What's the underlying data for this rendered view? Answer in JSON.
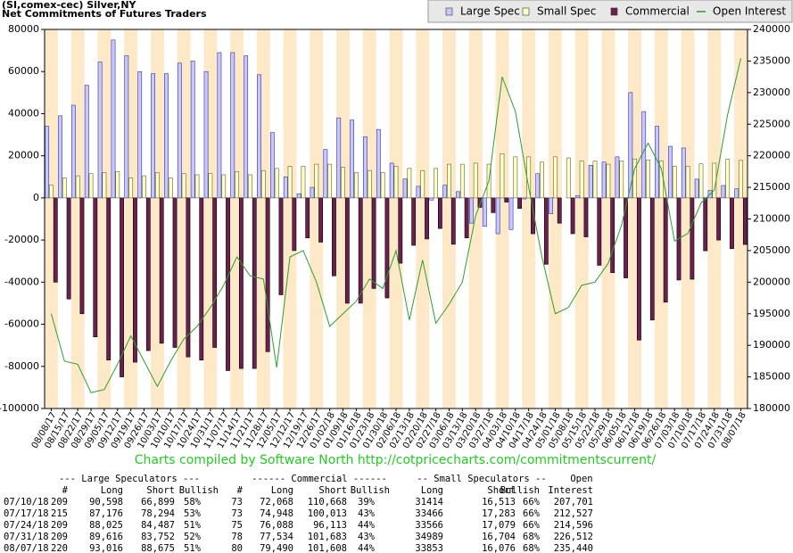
{
  "chart_data": {
    "type": "bar",
    "title": "(SI,comex-cec) Silver,NY",
    "subtitle": "Net Commitments of Futures Traders",
    "footer": "Charts compiled by Software North  http://cotpricecharts.com/commitmentscurrent/",
    "categories": [
      "08/08/17",
      "08/15/17",
      "08/22/17",
      "08/29/17",
      "09/05/17",
      "09/12/17",
      "09/19/17",
      "09/26/17",
      "10/03/17",
      "10/10/17",
      "10/17/17",
      "10/24/17",
      "10/31/17",
      "11/07/17",
      "11/14/17",
      "11/21/17",
      "11/28/17",
      "12/05/17",
      "12/12/17",
      "12/19/17",
      "12/26/17",
      "01/02/18",
      "01/09/18",
      "01/16/18",
      "01/23/18",
      "01/30/18",
      "02/06/18",
      "02/13/18",
      "02/20/18",
      "02/27/18",
      "03/06/18",
      "03/13/18",
      "03/20/18",
      "03/27/18",
      "04/03/18",
      "04/10/18",
      "04/17/18",
      "04/24/18",
      "05/01/18",
      "05/08/18",
      "05/15/18",
      "05/22/18",
      "05/29/18",
      "06/05/18",
      "06/12/18",
      "06/19/18",
      "06/26/18",
      "07/03/18",
      "07/10/18",
      "07/17/18",
      "07/24/18",
      "07/31/18",
      "08/07/18"
    ],
    "series": [
      {
        "name": "Large Spec",
        "type": "bar",
        "color": "#c8c8ff",
        "values": [
          34000,
          39000,
          44000,
          53500,
          64500,
          75000,
          67500,
          60000,
          59000,
          59000,
          64000,
          65000,
          60000,
          69000,
          69000,
          67500,
          58500,
          31000,
          10000,
          2000,
          5000,
          23000,
          38000,
          37000,
          29000,
          32500,
          16500,
          9000,
          5500,
          -1000,
          6000,
          3000,
          -12000,
          -13500,
          -17000,
          -15000,
          -500,
          11500,
          -7500,
          0,
          1000,
          15500,
          17000,
          19500,
          50000,
          41000,
          34000,
          24500,
          23700,
          8900,
          3500,
          5900,
          4300
        ]
      },
      {
        "name": "Small Spec",
        "type": "bar",
        "color": "#ffffc8",
        "values": [
          6000,
          9500,
          10500,
          11500,
          12000,
          12500,
          9500,
          10500,
          12000,
          9500,
          11500,
          11000,
          11500,
          11000,
          12500,
          11000,
          13000,
          14000,
          15000,
          15000,
          16000,
          16000,
          14500,
          12000,
          13000,
          12000,
          15000,
          14000,
          13000,
          14000,
          16000,
          16000,
          16500,
          16000,
          21000,
          19500,
          19500,
          17000,
          19500,
          19000,
          17500,
          17500,
          16000,
          17500,
          18500,
          18000,
          17500,
          15000,
          14900,
          16200,
          16500,
          18300,
          17800
        ]
      },
      {
        "name": "Commercial",
        "type": "bar",
        "color": "#6b2050",
        "values": [
          -40000,
          -48000,
          -55000,
          -66000,
          -77000,
          -85000,
          -78000,
          -72500,
          -69000,
          -71000,
          -75500,
          -77000,
          -71000,
          -82000,
          -81000,
          -81000,
          -73000,
          -46000,
          -25000,
          -19000,
          -21000,
          -37000,
          -50000,
          -50000,
          -43000,
          -47500,
          -31000,
          -22500,
          -19500,
          -14500,
          -22000,
          -19000,
          -4500,
          -7000,
          -2000,
          -5000,
          -17000,
          -31500,
          -12000,
          -17000,
          -18500,
          -32000,
          -35500,
          -38000,
          -67500,
          -58000,
          -49500,
          -39000,
          -38600,
          -25100,
          -20000,
          -24100,
          -22100
        ]
      },
      {
        "name": "Open Interest",
        "type": "line",
        "axis": "y2",
        "color": "#2e9e2e",
        "values": [
          195000,
          187500,
          187000,
          182500,
          183000,
          187000,
          191500,
          187500,
          183500,
          187500,
          191000,
          193000,
          196000,
          199500,
          204000,
          201000,
          200500,
          186500,
          204000,
          205000,
          200000,
          193000,
          195000,
          197000,
          200500,
          199000,
          205000,
          194000,
          203500,
          193500,
          196500,
          200000,
          210500,
          216000,
          232500,
          227000,
          215000,
          204000,
          195000,
          196000,
          199500,
          200000,
          203000,
          209000,
          218000,
          222000,
          218000,
          206500,
          207701,
          212527,
          214596,
          226512,
          235440
        ]
      }
    ],
    "ylim": [
      -100000,
      80000
    ],
    "yticks": [
      -100000,
      -80000,
      -60000,
      -40000,
      -20000,
      0,
      20000,
      40000,
      60000,
      80000
    ],
    "y2lim": [
      180000,
      240000
    ],
    "y2ticks": [
      180000,
      185000,
      190000,
      195000,
      200000,
      205000,
      210000,
      215000,
      220000,
      225000,
      230000,
      235000,
      240000
    ],
    "legend": "top-right",
    "band_color": "#fde8c8",
    "table": {
      "group_headers": [
        "--- Large Speculators ---",
        "------ Commercial ------",
        "-- Small Speculators --",
        "Open"
      ],
      "headers": [
        "#",
        "Long",
        "Short",
        "Bullish",
        "#",
        "Long",
        "Short",
        "Bullish",
        "Long",
        "Short",
        "Bullish",
        "Interest"
      ],
      "rows": [
        [
          "07/10/18",
          "209",
          "90,598",
          "66,899",
          "58%",
          "73",
          "72,068",
          "110,668",
          "39%",
          "31414",
          "16,513",
          "66%",
          "207,701"
        ],
        [
          "07/17/18",
          "215",
          "87,176",
          "78,294",
          "53%",
          "73",
          "74,948",
          "100,013",
          "43%",
          "33466",
          "17,283",
          "66%",
          "212,527"
        ],
        [
          "07/24/18",
          "209",
          "88,025",
          "84,487",
          "51%",
          "75",
          "76,088",
          "96,113",
          "44%",
          "33566",
          "17,079",
          "66%",
          "214,596"
        ],
        [
          "07/31/18",
          "209",
          "89,616",
          "83,752",
          "52%",
          "78",
          "77,534",
          "101,683",
          "43%",
          "34989",
          "16,704",
          "68%",
          "226,512"
        ],
        [
          "08/07/18",
          "220",
          "93,016",
          "88,675",
          "51%",
          "80",
          "79,490",
          "101,608",
          "44%",
          "33853",
          "16,076",
          "68%",
          "235,440"
        ]
      ]
    }
  }
}
